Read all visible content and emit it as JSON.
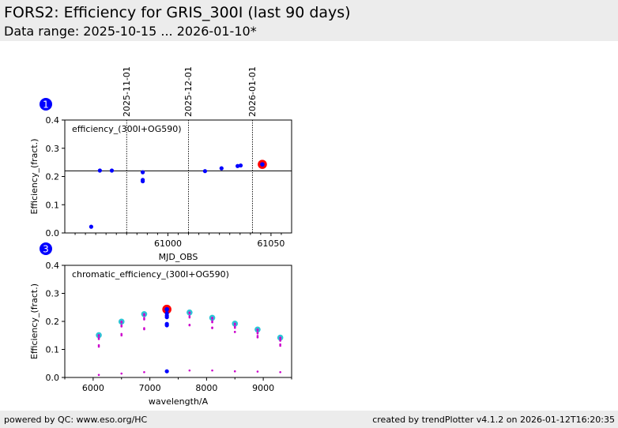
{
  "header": {
    "title": "FORS2: Efficiency for GRIS_300I (last 90 days)",
    "subtitle": "Data range: 2025-10-15 ... 2026-01-10*"
  },
  "footer": {
    "left": "powered by QC: www.eso.org/HC",
    "right": "created by trendPlotter v4.1.2 on 2026-01-12T16:20:35"
  },
  "colors": {
    "header_bg": "#ececec",
    "data_point": "#0000ff",
    "latest_highlight": "#ff0000",
    "reference_cyan": "#2ec4d6",
    "chromatic_magenta": "#cc00cc",
    "badge": "#0000ff"
  },
  "chart_data": [
    {
      "id": 1,
      "badge": "1",
      "type": "scatter",
      "annotation": "efficiency_(300I+OG590)",
      "xlabel": "MJD_OBS",
      "ylabel": "Efficiency_(fract.)",
      "xlim": [
        60950,
        61060
      ],
      "ylim": [
        0,
        0.4
      ],
      "xticks": [
        61000,
        61050
      ],
      "xminorticks": [
        60955,
        60960,
        60965,
        60970,
        60975,
        60980,
        60985,
        60990,
        60995,
        61005,
        61010,
        61015,
        61020,
        61025,
        61030,
        61035,
        61040,
        61045,
        61055
      ],
      "yticks": [
        "0.0",
        "0.1",
        "0.2",
        "0.3",
        "0.4"
      ],
      "reference_line": 0.22,
      "date_markers": [
        {
          "label": "2025-11-01",
          "mjd": 60980
        },
        {
          "label": "2025-12-01",
          "mjd": 61010
        },
        {
          "label": "2026-01-01",
          "mjd": 61041
        }
      ],
      "points": [
        {
          "x": 60962.8,
          "y": 0.022
        },
        {
          "x": 60967.0,
          "y": 0.221
        },
        {
          "x": 60972.8,
          "y": 0.221
        },
        {
          "x": 60987.8,
          "y": 0.215
        },
        {
          "x": 60987.8,
          "y": 0.188
        },
        {
          "x": 60987.8,
          "y": 0.183
        },
        {
          "x": 61018.0,
          "y": 0.219
        },
        {
          "x": 61026.0,
          "y": 0.229
        },
        {
          "x": 61033.8,
          "y": 0.237
        },
        {
          "x": 61035.3,
          "y": 0.239
        }
      ],
      "latest_point": {
        "x": 61045.8,
        "y": 0.243
      }
    },
    {
      "id": 3,
      "badge": "3",
      "type": "scatter",
      "annotation": "chromatic_efficiency_(300I+OG590)",
      "xlabel": "wavelength/A",
      "ylabel": "Efficiency_(fract.)",
      "xlim": [
        5500,
        9500
      ],
      "ylim": [
        0,
        0.4
      ],
      "xticks": [
        6000,
        7000,
        8000,
        9000
      ],
      "xminorticks": [
        5500,
        6500,
        7500,
        8500,
        9500
      ],
      "yticks": [
        "0.0",
        "0.1",
        "0.2",
        "0.3",
        "0.4"
      ],
      "reference_points": [
        {
          "x": 6100,
          "y": 0.151
        },
        {
          "x": 6500,
          "y": 0.199
        },
        {
          "x": 6900,
          "y": 0.226
        },
        {
          "x": 7300,
          "y": 0.241
        },
        {
          "x": 7700,
          "y": 0.232
        },
        {
          "x": 8100,
          "y": 0.213
        },
        {
          "x": 8500,
          "y": 0.192
        },
        {
          "x": 8900,
          "y": 0.171
        },
        {
          "x": 9300,
          "y": 0.142
        }
      ],
      "series": [
        {
          "x": [
            6100,
            6500,
            6900,
            7300,
            7700,
            8100,
            8500,
            8900,
            9300
          ],
          "y": [
            0.151,
            0.199,
            0.226,
            0.241,
            0.232,
            0.213,
            0.192,
            0.171,
            0.142
          ]
        },
        {
          "x": [
            6100,
            6500,
            6900,
            7300,
            7700,
            8100,
            8500,
            8900,
            9300
          ],
          "y": [
            0.148,
            0.196,
            0.222,
            0.238,
            0.229,
            0.21,
            0.189,
            0.168,
            0.14
          ]
        },
        {
          "x": [
            6100,
            6500,
            6900,
            7300,
            7700,
            8100,
            8500,
            8900,
            9300
          ],
          "y": [
            0.14,
            0.186,
            0.212,
            0.226,
            0.219,
            0.201,
            0.181,
            0.16,
            0.134
          ]
        },
        {
          "x": [
            6100,
            6500,
            6900,
            7300,
            7700,
            8100,
            8500,
            8900,
            9300
          ],
          "y": [
            0.137,
            0.182,
            0.207,
            0.222,
            0.214,
            0.197,
            0.177,
            0.157,
            0.131
          ]
        },
        {
          "x": [
            6100,
            6500,
            6900,
            7300,
            7700,
            8100,
            8500,
            8900,
            9300
          ],
          "y": [
            0.115,
            0.155,
            0.176,
            0.19,
            0.186,
            0.176,
            0.162,
            0.148,
            0.118
          ]
        },
        {
          "x": [
            6100,
            6500,
            6900,
            7300,
            7700,
            8100,
            8500,
            8900,
            9300
          ],
          "y": [
            0.11,
            0.15,
            0.172,
            0.186,
            0.188,
            0.178,
            0.163,
            0.143,
            0.113
          ]
        },
        {
          "x": [
            6100,
            6500,
            6900,
            7300,
            7700,
            8100,
            8500,
            8900,
            9300
          ],
          "y": [
            0.009,
            0.014,
            0.019,
            0.022,
            0.025,
            0.025,
            0.022,
            0.021,
            0.019
          ]
        }
      ],
      "current_points": [
        {
          "x": 7300,
          "y": 0.243
        },
        {
          "x": 7300,
          "y": 0.229
        },
        {
          "x": 7300,
          "y": 0.221
        },
        {
          "x": 7300,
          "y": 0.215
        },
        {
          "x": 7300,
          "y": 0.191
        },
        {
          "x": 7300,
          "y": 0.186
        },
        {
          "x": 7300,
          "y": 0.022
        }
      ],
      "latest_point": {
        "x": 7300,
        "y": 0.243
      }
    }
  ]
}
